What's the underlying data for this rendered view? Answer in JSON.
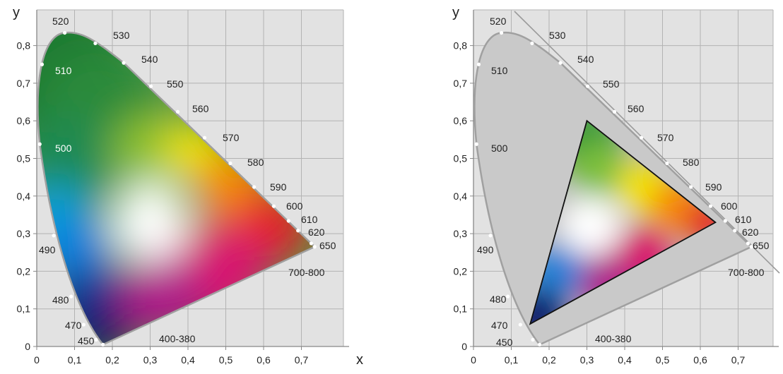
{
  "chart_data": [
    {
      "type": "diagram",
      "x_label": "x",
      "y_label": "y",
      "x_ticks": [
        "0",
        "0,1",
        "0,2",
        "0,3",
        "0,4",
        "0,5",
        "0,6",
        "0,7"
      ],
      "y_ticks": [
        "0",
        "0,1",
        "0,2",
        "0,3",
        "0,4",
        "0,5",
        "0,6",
        "0,7",
        "0,8"
      ],
      "xlim": [
        0,
        0.8
      ],
      "ylim": [
        0,
        0.85
      ],
      "grid": true,
      "fill": "full spectrum color gamut",
      "locus": [
        {
          "label": "400-380",
          "x": 0.175,
          "y": 0.005
        },
        {
          "label": "450",
          "x": 0.157,
          "y": 0.018
        },
        {
          "label": "470",
          "x": 0.124,
          "y": 0.058
        },
        {
          "label": "480",
          "x": 0.091,
          "y": 0.133
        },
        {
          "label": "490",
          "x": 0.045,
          "y": 0.295
        },
        {
          "label": "500",
          "x": 0.008,
          "y": 0.538
        },
        {
          "label": "510",
          "x": 0.014,
          "y": 0.75
        },
        {
          "label": "520",
          "x": 0.074,
          "y": 0.834
        },
        {
          "label": "530",
          "x": 0.155,
          "y": 0.806
        },
        {
          "label": "540",
          "x": 0.23,
          "y": 0.754
        },
        {
          "label": "550",
          "x": 0.302,
          "y": 0.692
        },
        {
          "label": "560",
          "x": 0.373,
          "y": 0.624
        },
        {
          "label": "570",
          "x": 0.444,
          "y": 0.555
        },
        {
          "label": "580",
          "x": 0.512,
          "y": 0.487
        },
        {
          "label": "590",
          "x": 0.575,
          "y": 0.424
        },
        {
          "label": "600",
          "x": 0.627,
          "y": 0.373
        },
        {
          "label": "610",
          "x": 0.666,
          "y": 0.334
        },
        {
          "label": "620",
          "x": 0.691,
          "y": 0.308
        },
        {
          "label": "650",
          "x": 0.726,
          "y": 0.274
        },
        {
          "label": "700-800",
          "x": 0.735,
          "y": 0.265
        }
      ]
    },
    {
      "type": "diagram",
      "x_label": "x",
      "y_label": "y",
      "x_ticks": [
        "0",
        "0,1",
        "0,2",
        "0,3",
        "0,4",
        "0,5",
        "0,6",
        "0,7"
      ],
      "y_ticks": [
        "0",
        "0,1",
        "0,2",
        "0,3",
        "0,4",
        "0,5",
        "0,6",
        "0,7",
        "0,8"
      ],
      "xlim": [
        0,
        0.8
      ],
      "ylim": [
        0,
        0.85
      ],
      "grid": true,
      "fill": "gray locus with colored gamut triangle",
      "triangle": [
        {
          "x": 0.64,
          "y": 0.33
        },
        {
          "x": 0.3,
          "y": 0.6
        },
        {
          "x": 0.15,
          "y": 0.06
        }
      ],
      "locus_labels": [
        "400-380",
        "450",
        "470",
        "480",
        "490",
        "500",
        "510",
        "520",
        "530",
        "540",
        "550",
        "560",
        "570",
        "580",
        "590",
        "600",
        "610",
        "620",
        "650",
        "700-800"
      ]
    }
  ]
}
